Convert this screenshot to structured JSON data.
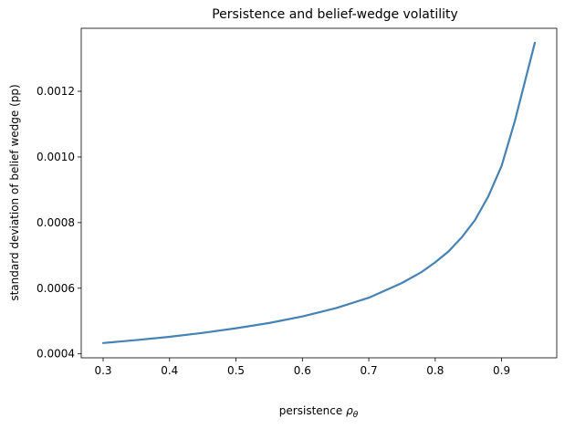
{
  "chart_data": {
    "type": "line",
    "title": "Persistence and belief-wedge volatility",
    "xlabel": "persistence ",
    "xlabel_symbol": "ρ",
    "xlabel_subscript": "θ",
    "ylabel": "standard deviation of belief wedge (pp)",
    "xlim": [
      0.267,
      0.983
    ],
    "ylim": [
      0.000388,
      0.001392
    ],
    "xticks": [
      0.3,
      0.4,
      0.5,
      0.6,
      0.7,
      0.8,
      0.9
    ],
    "xtick_labels": [
      "0.3",
      "0.4",
      "0.5",
      "0.6",
      "0.7",
      "0.8",
      "0.9"
    ],
    "yticks": [
      0.0004,
      0.0006,
      0.0008,
      0.001,
      0.0012
    ],
    "ytick_labels": [
      "0.0004",
      "0.0006",
      "0.0008",
      "0.0010",
      "0.0012"
    ],
    "grid": false,
    "line_color": "#4682b4",
    "series": [
      {
        "x": [
          0.3,
          0.35,
          0.4,
          0.45,
          0.5,
          0.55,
          0.6,
          0.65,
          0.7,
          0.75,
          0.78,
          0.8,
          0.82,
          0.84,
          0.86,
          0.88,
          0.9,
          0.92,
          0.95
        ],
        "values": [
          0.000433,
          0.000442,
          0.000452,
          0.000464,
          0.000478,
          0.000494,
          0.000514,
          0.000539,
          0.000571,
          0.000616,
          0.00065,
          0.000679,
          0.000712,
          0.000755,
          0.000808,
          0.00088,
          0.000973,
          0.00111,
          0.001348
        ]
      }
    ]
  }
}
